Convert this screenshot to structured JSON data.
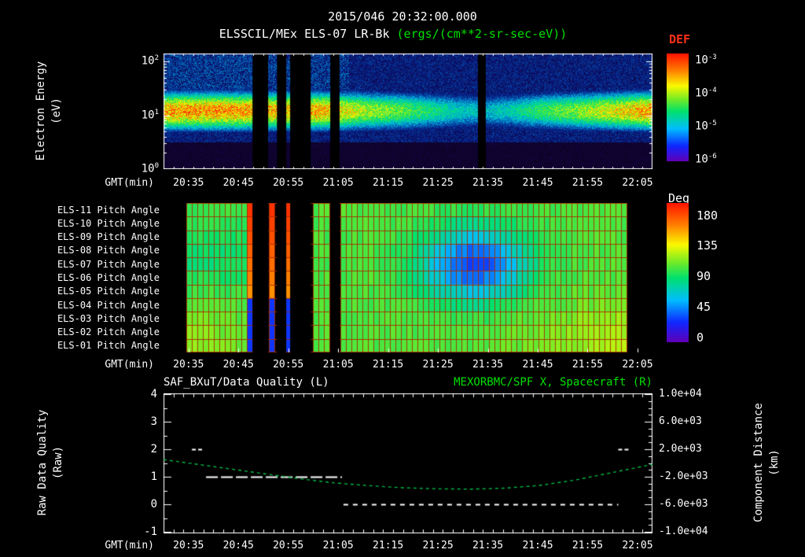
{
  "title": "2015/046 20:32:00.000",
  "subtitle": {
    "instrument": "ELSSCIL/MEx ELS-07 LR-Bk",
    "units": "(ergs/(cm**2-sr-sec-eV))"
  },
  "time_axis": {
    "label": "GMT(min)",
    "ticks": [
      "20:35",
      "20:45",
      "20:55",
      "21:05",
      "21:15",
      "21:25",
      "21:35",
      "21:45",
      "21:55",
      "22:05"
    ]
  },
  "panel1": {
    "ylabel_line1": "Electron Energy",
    "ylabel_line2": "(eV)",
    "yticks": [
      "10^0",
      "10^1",
      "10^2"
    ],
    "colorbar": {
      "label": "DEF",
      "ticks": [
        "10^-3",
        "10^-4",
        "10^-5",
        "10^-6"
      ]
    }
  },
  "panel2": {
    "row_labels": [
      "ELS-11 Pitch Angle",
      "ELS-10 Pitch Angle",
      "ELS-09 Pitch Angle",
      "ELS-08 Pitch Angle",
      "ELS-07 Pitch Angle",
      "ELS-06 Pitch Angle",
      "ELS-05 Pitch Angle",
      "ELS-04 Pitch Angle",
      "ELS-03 Pitch Angle",
      "ELS-02 Pitch Angle",
      "ELS-01 Pitch Angle"
    ],
    "colorbar": {
      "label": "Deg",
      "ticks": [
        "180",
        "135",
        "90",
        "45",
        "0"
      ]
    }
  },
  "panel3": {
    "title_left": "SAF_BXuT/Data Quality (L)",
    "title_right": "MEXORBMC/SPF X, Spacecraft (R)",
    "ylabel_left_line1": "Raw Data Quality",
    "ylabel_left_line2": "(Raw)",
    "ylabel_right_line1": "Component Distance",
    "ylabel_right_line2": "(km)",
    "yticks_left": [
      "4",
      "3",
      "2",
      "1",
      "0",
      "-1"
    ],
    "yticks_right": [
      "1.0e+04",
      "6.0e+03",
      "2.0e+03",
      "-2.0e+03",
      "-6.0e+03",
      "-1.0e+04"
    ]
  },
  "colors": {
    "accent_green": "#00e000",
    "def_red": "#ff3018",
    "curve_green": "#00bb44",
    "grid_red": "#a52d00",
    "background": "#000000",
    "foreground": "#ffffff"
  },
  "chart_data": [
    {
      "type": "heatmap",
      "name": "electron_energy_spectrogram",
      "title": "ELSSCIL/MEx ELS-07 LR-Bk",
      "units": "ergs/(cm**2-sr-sec-eV)",
      "ylabel": "Electron Energy (eV)",
      "x_range_gmt": [
        "20:30",
        "22:08"
      ],
      "x_span_minutes": 98,
      "y_log10_ev_range": [
        0,
        2.15
      ],
      "colorbar_label": "DEF",
      "colorbar_value_ticks": [
        "10^-3",
        "10^-4",
        "10^-5",
        "10^-6"
      ],
      "band_center_log10_ev": 1.08,
      "band_sigma_log10": 0.33,
      "band_intensity_keypoints": [
        [
          0,
          0.8
        ],
        [
          0.1,
          0.83
        ],
        [
          0.18,
          0.8
        ],
        [
          0.25,
          0.78
        ],
        [
          0.31,
          0.8
        ],
        [
          0.36,
          0.72
        ],
        [
          0.42,
          0.62
        ],
        [
          0.48,
          0.55
        ],
        [
          0.55,
          0.45
        ],
        [
          0.6,
          0.38
        ],
        [
          0.66,
          0.34
        ],
        [
          0.72,
          0.4
        ],
        [
          0.78,
          0.5
        ],
        [
          0.84,
          0.58
        ],
        [
          0.9,
          0.66
        ],
        [
          0.95,
          0.74
        ],
        [
          1,
          0.83
        ]
      ],
      "data_gaps_t": [
        [
          0.182,
          0.214
        ],
        [
          0.232,
          0.251
        ],
        [
          0.259,
          0.301
        ],
        [
          0.341,
          0.36
        ],
        [
          0.643,
          0.659
        ]
      ]
    },
    {
      "type": "heatmap",
      "name": "pitch_angle_grid",
      "rows": 11,
      "cols": 80,
      "deg_range": [
        0,
        180
      ],
      "base_deg": 96,
      "data_t_range": [
        0.047,
        0.947
      ],
      "blob": {
        "t_center": 0.635,
        "row_center": 4.0,
        "sigma_t": 0.105,
        "sigma_row": 2.6,
        "delta_deg": -66
      },
      "red_stripes_t": [
        [
          0.172,
          0.182
        ],
        [
          0.22,
          0.231
        ],
        [
          0.251,
          0.259
        ]
      ],
      "gaps_t": [
        [
          0.182,
          0.214
        ],
        [
          0.232,
          0.251
        ],
        [
          0.259,
          0.301
        ],
        [
          0.341,
          0.36
        ]
      ]
    },
    {
      "type": "line",
      "name": "quality_and_spacecraft_x",
      "title_left": "SAF_BXuT/Data Quality (L)",
      "title_right": "MEXORBMC/SPF X, Spacecraft (R)",
      "ylim_left": [
        -1,
        4
      ],
      "ylim_right": [
        -10000,
        10000
      ],
      "quality_segments": [
        {
          "t_start": 0.058,
          "t_end": 0.082,
          "value": 2
        },
        {
          "t_start": 0.087,
          "t_end": 0.365,
          "value": 1
        },
        {
          "t_start": 0.368,
          "t_end": 0.93,
          "value": 0
        },
        {
          "t_start": 0.93,
          "t_end": 0.955,
          "value": 2
        }
      ],
      "spacecraft_x": {
        "t": [
          0,
          0.07,
          0.14,
          0.21,
          0.28,
          0.35,
          0.42,
          0.49,
          0.56,
          0.63,
          0.7,
          0.77,
          0.84,
          0.91,
          1.0
        ],
        "km": [
          500,
          -200,
          -900,
          -1600,
          -2300,
          -2900,
          -3300,
          -3600,
          -3750,
          -3800,
          -3650,
          -3250,
          -2500,
          -1500,
          -200
        ]
      }
    }
  ]
}
